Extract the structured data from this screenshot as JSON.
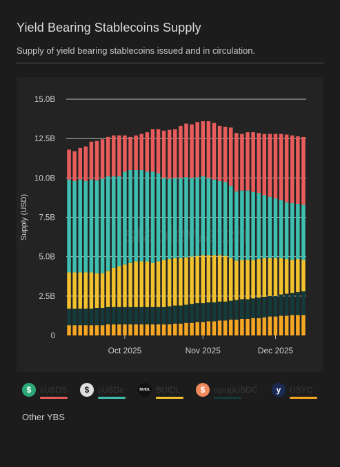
{
  "title": "Yield Bearing Stablecoins Supply",
  "subtitle": "Supply of yield bearing stablecoins issued and in circulation.",
  "watermark": "stablewatch",
  "other_label": "Other YBS",
  "legend": [
    {
      "name": "sUSDS",
      "icon": "susds-icon",
      "icon_color": "#2aa876",
      "glyph": "$",
      "line_color": "#e85c5c"
    },
    {
      "name": "sUSDe",
      "icon": "susde-icon",
      "icon_color": "#e0e0e0",
      "glyph": "$",
      "line_color": "#3fbfb0"
    },
    {
      "name": "BUIDL",
      "icon": "buidl-icon",
      "icon_color": "#111111",
      "glyph": "BUIDL",
      "line_color": "#f2c12e"
    },
    {
      "name": "syrupUSDC",
      "icon": "syrupusdc-icon",
      "icon_color": "#f08a5d",
      "glyph": "$",
      "line_color": "#143a3a"
    },
    {
      "name": "USYC",
      "icon": "usyc-icon",
      "icon_color": "#1a2a55",
      "glyph": "y",
      "line_color": "#f5a623"
    }
  ],
  "chart_data": {
    "type": "bar",
    "stacked": true,
    "ylabel": "Supply (USD)",
    "ylim": [
      0,
      15
    ],
    "y_ticks": [
      "0",
      "2.5B",
      "5.0B",
      "7.5B",
      "10.0B",
      "12.5B",
      "15.0B"
    ],
    "y_tick_values": [
      0,
      2.5,
      5,
      7.5,
      10,
      12.5,
      15
    ],
    "x_ticks": [
      {
        "label": "Oct 2025",
        "index": 10
      },
      {
        "label": "Nov 2025",
        "index": 24
      },
      {
        "label": "Dec 2025",
        "index": 37
      }
    ],
    "grid": true,
    "colors": {
      "USYC": "#f5a623",
      "syrupUSDC": "#143a3a",
      "BUIDL": "#f2c12e",
      "sUSDe": "#3fbfb0",
      "sUSDS": "#e85c5c"
    },
    "series": [
      {
        "name": "USYC",
        "values": [
          0.65,
          0.65,
          0.65,
          0.65,
          0.65,
          0.65,
          0.65,
          0.7,
          0.7,
          0.7,
          0.7,
          0.7,
          0.7,
          0.7,
          0.7,
          0.7,
          0.7,
          0.7,
          0.7,
          0.75,
          0.75,
          0.8,
          0.8,
          0.85,
          0.85,
          0.9,
          0.9,
          0.95,
          0.95,
          1.0,
          1.0,
          1.05,
          1.05,
          1.1,
          1.1,
          1.15,
          1.2,
          1.2,
          1.25,
          1.25,
          1.3,
          1.3,
          1.3
        ]
      },
      {
        "name": "syrupUSDC",
        "values": [
          1.05,
          1.05,
          1.05,
          1.05,
          1.05,
          1.1,
          1.1,
          1.1,
          1.1,
          1.1,
          1.1,
          1.1,
          1.1,
          1.1,
          1.1,
          1.1,
          1.1,
          1.1,
          1.15,
          1.15,
          1.15,
          1.15,
          1.2,
          1.2,
          1.2,
          1.2,
          1.2,
          1.2,
          1.2,
          1.2,
          1.25,
          1.25,
          1.25,
          1.25,
          1.3,
          1.3,
          1.3,
          1.3,
          1.35,
          1.4,
          1.4,
          1.45,
          1.5
        ]
      },
      {
        "name": "BUIDL",
        "values": [
          2.3,
          2.3,
          2.3,
          2.3,
          2.3,
          2.2,
          2.2,
          2.3,
          2.5,
          2.6,
          2.7,
          2.8,
          2.9,
          2.9,
          2.9,
          2.8,
          2.9,
          3.0,
          3.0,
          3.0,
          3.0,
          3.0,
          3.0,
          3.0,
          3.05,
          3.0,
          3.0,
          2.95,
          2.9,
          2.7,
          2.5,
          2.5,
          2.5,
          2.45,
          2.45,
          2.45,
          2.4,
          2.4,
          2.3,
          2.2,
          2.1,
          2.1,
          2.0
        ]
      },
      {
        "name": "sUSDe",
        "values": [
          5.9,
          5.8,
          5.9,
          5.8,
          5.9,
          5.9,
          6.0,
          6.0,
          5.8,
          5.7,
          5.9,
          5.9,
          5.8,
          5.8,
          5.7,
          5.8,
          5.6,
          5.2,
          5.1,
          5.1,
          5.1,
          5.1,
          5.0,
          5.0,
          5.0,
          4.9,
          4.8,
          4.7,
          4.7,
          4.6,
          4.4,
          4.4,
          4.4,
          4.3,
          4.2,
          4.0,
          3.9,
          3.8,
          3.7,
          3.6,
          3.6,
          3.5,
          3.5
        ]
      },
      {
        "name": "sUSDS",
        "values": [
          1.9,
          1.9,
          2.0,
          2.2,
          2.4,
          2.5,
          2.5,
          2.5,
          2.6,
          2.6,
          2.3,
          2.1,
          2.2,
          2.3,
          2.5,
          2.7,
          2.8,
          3.0,
          3.1,
          3.1,
          3.3,
          3.4,
          3.4,
          3.5,
          3.5,
          3.6,
          3.6,
          3.5,
          3.5,
          3.7,
          3.7,
          3.6,
          3.7,
          3.8,
          3.8,
          3.9,
          4.0,
          4.1,
          4.2,
          4.3,
          4.3,
          4.3,
          4.3
        ]
      }
    ]
  }
}
